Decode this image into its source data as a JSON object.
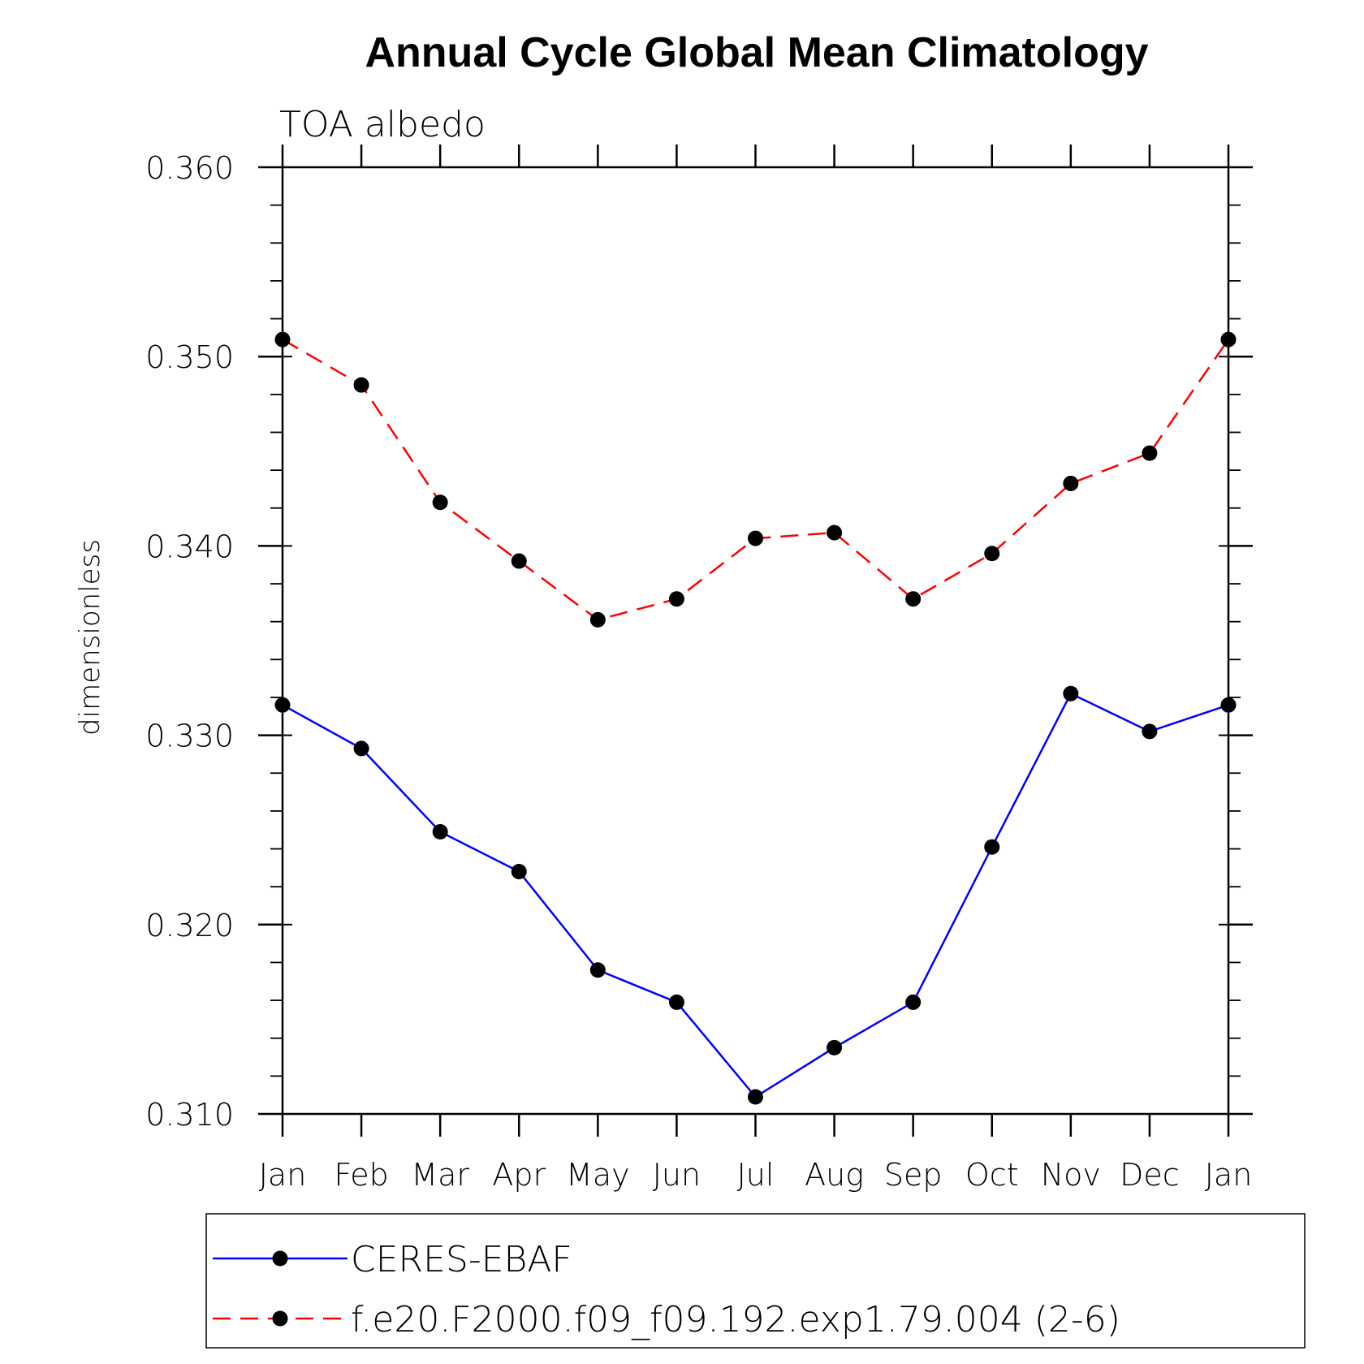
{
  "chart_data": {
    "type": "line",
    "title": "Annual Cycle Global Mean Climatology",
    "subtitle": "TOA albedo",
    "xlabel": "",
    "ylabel": "dimensionless",
    "categories": [
      "Jan",
      "Feb",
      "Mar",
      "Apr",
      "May",
      "Jun",
      "Jul",
      "Aug",
      "Sep",
      "Oct",
      "Nov",
      "Dec",
      "Jan"
    ],
    "ylim": [
      0.31,
      0.36
    ],
    "yticks": [
      0.31,
      0.32,
      0.33,
      0.34,
      0.35,
      0.36
    ],
    "ytick_labels": [
      "0.310",
      "0.320",
      "0.330",
      "0.340",
      "0.350",
      "0.360"
    ],
    "grid": false,
    "legend_position": "bottom",
    "series": [
      {
        "name": "CERES-EBAF",
        "color": "#0000ff",
        "dash": "solid",
        "marker": "circle",
        "values": [
          0.3316,
          0.3293,
          0.3249,
          0.3228,
          0.3176,
          0.3159,
          0.3109,
          0.3135,
          0.3159,
          0.3241,
          0.3322,
          0.3302,
          0.3316
        ]
      },
      {
        "name": "f.e20.F2000.f09_f09.192.exp1.79.004 (2-6)",
        "color": "#ff0000",
        "dash": "dashed",
        "marker": "circle",
        "values": [
          0.3509,
          0.3485,
          0.3423,
          0.3392,
          0.3361,
          0.3372,
          0.3404,
          0.3407,
          0.3372,
          0.3396,
          0.3433,
          0.3449,
          0.3509
        ]
      }
    ]
  }
}
